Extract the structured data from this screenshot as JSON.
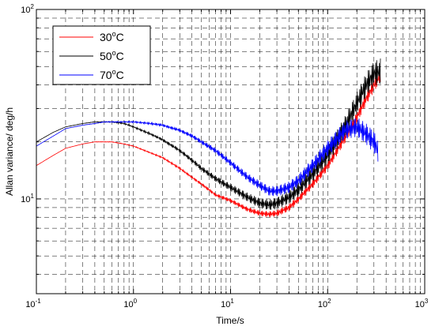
{
  "chart_data": {
    "type": "line",
    "title": "",
    "xlabel": "Time/s",
    "ylabel": "Allan variance/ deg/h",
    "xscale": "log",
    "yscale": "log",
    "xlim": [
      0.1,
      1000
    ],
    "ylim": [
      3.16,
      100
    ],
    "grid": "dashed, major and minor",
    "legend": "top-left",
    "xticks": [
      {
        "base": "10",
        "exp": "-1"
      },
      {
        "base": "10",
        "exp": "0"
      },
      {
        "base": "10",
        "exp": "1"
      },
      {
        "base": "10",
        "exp": "2"
      },
      {
        "base": "10",
        "exp": "3"
      }
    ],
    "yticks": [
      {
        "value": 10,
        "base": "10",
        "exp": "1"
      },
      {
        "value": 100,
        "base": "10",
        "exp": "2"
      }
    ],
    "series": [
      {
        "name": "30",
        "unit_sup": "o",
        "unit": "C",
        "color": "#ff0000",
        "noise": 0.05,
        "x": [
          0.1,
          0.15,
          0.2,
          0.3,
          0.4,
          0.5,
          0.6,
          0.8,
          1,
          1.5,
          2,
          3,
          4,
          5,
          7,
          10,
          15,
          20,
          25,
          30,
          40,
          50,
          70,
          100,
          150,
          200,
          250,
          300,
          350
        ],
        "y": [
          15,
          17,
          18.5,
          19.5,
          20,
          20,
          20,
          19.5,
          19,
          17.5,
          16.5,
          14.5,
          13,
          12,
          10.5,
          9.8,
          8.8,
          8.4,
          8.3,
          8.4,
          9.0,
          10.0,
          12,
          15,
          21,
          27,
          34,
          40,
          45
        ]
      },
      {
        "name": "50",
        "unit_sup": "o",
        "unit": "C",
        "color": "#000000",
        "noise": 0.09,
        "x": [
          0.1,
          0.15,
          0.2,
          0.3,
          0.4,
          0.5,
          0.6,
          0.8,
          1,
          1.5,
          2,
          3,
          4,
          5,
          7,
          10,
          15,
          20,
          25,
          30,
          40,
          50,
          70,
          100,
          150,
          200,
          250,
          300,
          350
        ],
        "y": [
          20,
          22.5,
          24,
          25,
          25.5,
          25.5,
          25.5,
          25,
          24,
          22,
          20.5,
          18,
          16,
          14.5,
          12.8,
          11.5,
          10.2,
          9.5,
          9.3,
          9.5,
          10.2,
          11.2,
          13.5,
          17,
          24,
          32,
          40,
          46,
          47
        ]
      },
      {
        "name": "70",
        "unit_sup": "o",
        "unit": "C",
        "color": "#0000ff",
        "noise": 0.08,
        "x": [
          0.1,
          0.15,
          0.2,
          0.3,
          0.4,
          0.5,
          0.6,
          0.8,
          1,
          1.5,
          2,
          3,
          4,
          5,
          7,
          10,
          15,
          20,
          25,
          30,
          40,
          50,
          70,
          100,
          150,
          200,
          250,
          300,
          330
        ],
        "y": [
          19,
          21.5,
          23.5,
          24.5,
          25,
          25.5,
          25.5,
          25.5,
          25.5,
          25,
          24.5,
          23,
          21.5,
          20,
          18,
          15.5,
          13,
          11.8,
          11,
          11,
          11.5,
          12.5,
          15,
          18.5,
          23,
          24,
          22,
          20,
          18
        ]
      }
    ]
  }
}
